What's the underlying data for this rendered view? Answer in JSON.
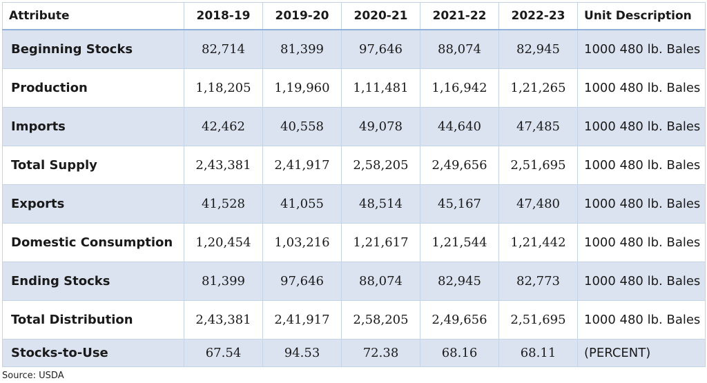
{
  "headers": {
    "attribute": "Attribute",
    "years": [
      "2018-19",
      "2019-20",
      "2020-21",
      "2021-22",
      "2022-23"
    ],
    "unit": "Unit Description"
  },
  "rows": [
    {
      "label": "Beginning Stocks",
      "values": [
        "82,714",
        "81,399",
        "97,646",
        "88,074",
        "82,945"
      ],
      "unit": "1000 480 lb. Bales"
    },
    {
      "label": "Production",
      "values": [
        "1,18,205",
        "1,19,960",
        "1,11,481",
        "1,16,942",
        "1,21,265"
      ],
      "unit": "1000 480 lb. Bales"
    },
    {
      "label": "Imports",
      "values": [
        "42,462",
        "40,558",
        "49,078",
        "44,640",
        "47,485"
      ],
      "unit": "1000 480 lb. Bales"
    },
    {
      "label": "Total Supply",
      "values": [
        "2,43,381",
        "2,41,917",
        "2,58,205",
        "2,49,656",
        "2,51,695"
      ],
      "unit": "1000 480 lb. Bales"
    },
    {
      "label": "Exports",
      "values": [
        "41,528",
        "41,055",
        "48,514",
        "45,167",
        "47,480"
      ],
      "unit": "1000 480 lb. Bales"
    },
    {
      "label": "Domestic Consumption",
      "values": [
        "1,20,454",
        "1,03,216",
        "1,21,617",
        "1,21,544",
        "1,21,442"
      ],
      "unit": "1000 480 lb. Bales"
    },
    {
      "label": "Ending Stocks",
      "values": [
        "81,399",
        "97,646",
        "88,074",
        "82,945",
        "82,773"
      ],
      "unit": "1000 480 lb. Bales"
    },
    {
      "label": "Total Distribution",
      "values": [
        "2,43,381",
        "2,41,917",
        "2,58,205",
        "2,49,656",
        "2,51,695"
      ],
      "unit": "1000 480 lb. Bales"
    },
    {
      "label": "Stocks-to-Use",
      "values": [
        "67.54",
        "94.53",
        "72.38",
        "68.16",
        "68.11"
      ],
      "unit": "(PERCENT)"
    }
  ],
  "source": "Source: USDA",
  "colors": {
    "row_shade": "#dbe3f1",
    "header_rule": "#8fb0d8",
    "grid": "#c5d3e6"
  }
}
